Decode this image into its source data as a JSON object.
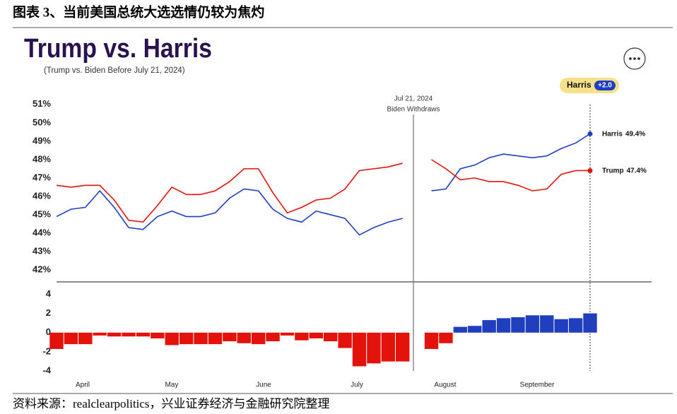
{
  "caption": "图表 3、当前美国总统大选选情仍较为焦灼",
  "source": "资料来源：realclearpolitics，兴业证券经济与金融研究院整理",
  "chart_data": [
    {
      "type": "line",
      "title": "Trump vs. Harris",
      "subtitle": "(Trump vs. Biden Before July 21, 2024)",
      "badge": {
        "name": "Harris",
        "label": "+2.0"
      },
      "annotation": [
        "Jul 21, 2024",
        "Biden Withdraws"
      ],
      "ylim": [
        41.5,
        51.3
      ],
      "yticks": [
        {
          "value": 42,
          "label": "42%"
        },
        {
          "value": 43,
          "label": "43%"
        },
        {
          "value": 44,
          "label": "44%"
        },
        {
          "value": 45,
          "label": "45%"
        },
        {
          "value": 46,
          "label": "46%"
        },
        {
          "value": 47,
          "label": "47%"
        },
        {
          "value": 48,
          "label": "48%"
        },
        {
          "value": 49,
          "label": "49%"
        },
        {
          "value": 50,
          "label": "50%"
        },
        {
          "value": 51,
          "label": "51%"
        }
      ],
      "grid": false,
      "series": [
        {
          "name": "Harris",
          "color": "#1f3fbf",
          "end_label": "49.4%",
          "values": [
            44.9,
            45.3,
            45.4,
            46.3,
            45.4,
            44.3,
            44.2,
            44.9,
            45.2,
            44.9,
            44.9,
            45.1,
            45.9,
            46.4,
            46.3,
            45.3,
            44.8,
            44.6,
            45.2,
            45.0,
            44.8,
            43.9,
            44.3,
            44.6,
            44.8,
            null,
            46.3,
            46.4,
            47.5,
            47.7,
            48.1,
            48.3,
            48.2,
            48.1,
            48.2,
            48.6,
            48.9,
            49.4
          ]
        },
        {
          "name": "Trump",
          "color": "#e3120b",
          "end_label": "47.4%",
          "values": [
            46.6,
            46.5,
            46.6,
            46.6,
            45.8,
            44.7,
            44.6,
            45.5,
            46.5,
            46.1,
            46.1,
            46.3,
            46.8,
            47.5,
            47.5,
            46.2,
            45.1,
            45.4,
            45.8,
            45.9,
            46.4,
            47.4,
            47.5,
            47.6,
            47.8,
            null,
            48.0,
            47.5,
            46.9,
            47.0,
            46.8,
            46.8,
            46.6,
            46.3,
            46.4,
            47.2,
            47.4,
            47.4
          ]
        }
      ]
    },
    {
      "type": "bar",
      "ylim": [
        -4.2,
        5.2
      ],
      "yticks": [
        -4,
        -2,
        0,
        2,
        4
      ],
      "colors": {
        "positive": "#1f3fbf",
        "negative": "#e3120b"
      },
      "values": [
        -1.7,
        -1.2,
        -1.2,
        -0.3,
        -0.4,
        -0.4,
        -0.4,
        -0.6,
        -1.3,
        -1.2,
        -1.2,
        -1.2,
        -0.9,
        -1.1,
        -1.2,
        -0.9,
        -0.3,
        -0.8,
        -0.6,
        -0.9,
        -1.6,
        -3.5,
        -3.2,
        -3.0,
        -3.0,
        null,
        -1.7,
        -1.1,
        0.6,
        0.7,
        1.3,
        1.5,
        1.6,
        1.8,
        1.8,
        1.4,
        1.5,
        2.0
      ],
      "month_labels": [
        "April",
        "May",
        "June",
        "July",
        "August",
        "September"
      ]
    }
  ]
}
